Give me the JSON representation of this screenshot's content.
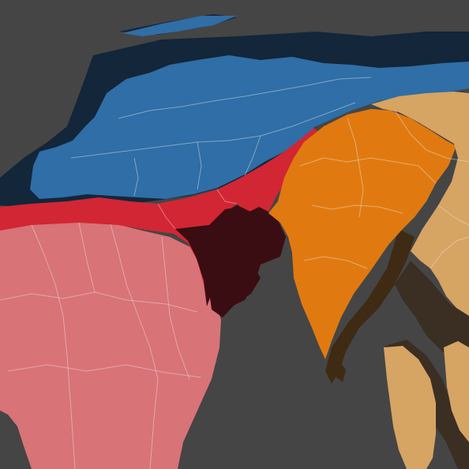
{
  "map": {
    "background": "#454545",
    "regions": [
      {
        "id": "blue",
        "fill": "#2f6ea6",
        "shadow": "#13263a"
      },
      {
        "id": "red",
        "fill": "#d22634",
        "shadow": "#3a0d12"
      },
      {
        "id": "pink",
        "fill": "#d87378"
      },
      {
        "id": "orange",
        "fill": "#e07a10",
        "shadow": "#3f2a14"
      },
      {
        "id": "tan",
        "fill": "#d6a463",
        "shadow": "#3a2f22"
      }
    ],
    "border_color": "#e9e9e9",
    "border_opacity": 0.45
  }
}
